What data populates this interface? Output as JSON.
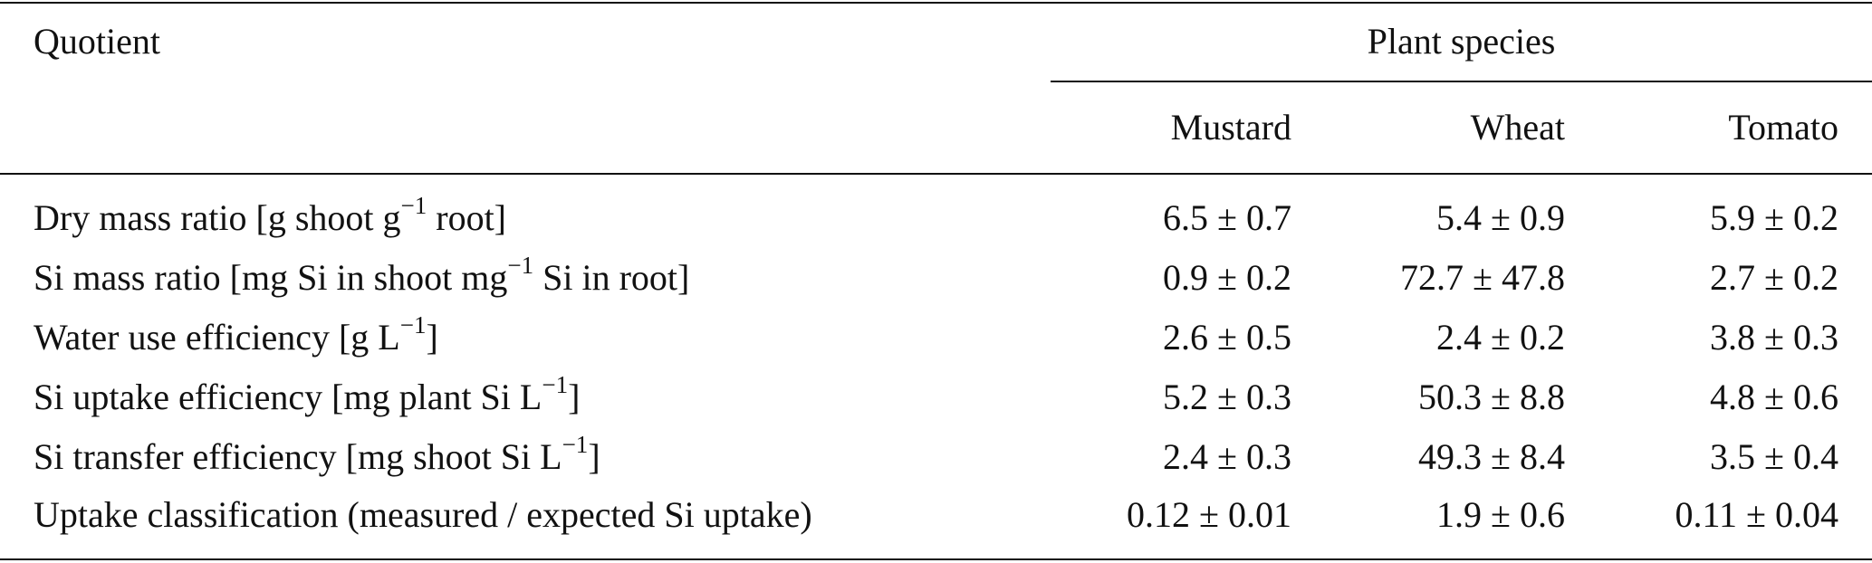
{
  "table": {
    "header": {
      "quotient": "Quotient",
      "group": "Plant species",
      "columns": [
        "Mustard",
        "Wheat",
        "Tomato"
      ]
    },
    "rows": [
      {
        "quotient": [
          "Dry mass ratio [g shoot g",
          "−1",
          " root]"
        ],
        "values": [
          "6.5 ± 0.7",
          "5.4 ± 0.9",
          "5.9 ± 0.2"
        ]
      },
      {
        "quotient": [
          "Si mass ratio [mg Si in shoot mg",
          "−1",
          " Si in root]"
        ],
        "values": [
          "0.9 ± 0.2",
          "72.7 ± 47.8",
          "2.7 ± 0.2"
        ]
      },
      {
        "quotient": [
          "Water use efficiency [g L",
          "−1",
          "]"
        ],
        "values": [
          "2.6 ± 0.5",
          "2.4 ± 0.2",
          "3.8 ± 0.3"
        ]
      },
      {
        "quotient": [
          "Si uptake efficiency [mg plant Si L",
          "−1",
          "]"
        ],
        "values": [
          "5.2 ± 0.3",
          "50.3 ± 8.8",
          "4.8 ± 0.6"
        ]
      },
      {
        "quotient": [
          "Si transfer efficiency [mg shoot Si L",
          "−1",
          "]"
        ],
        "values": [
          "2.4 ± 0.3",
          "49.3 ± 8.4",
          "3.5 ± 0.4"
        ]
      },
      {
        "quotient": [
          "Uptake classification (measured / expected Si uptake)"
        ],
        "values": [
          "0.12 ± 0.01",
          "1.9 ± 0.6",
          "0.11 ± 0.04"
        ]
      }
    ]
  }
}
